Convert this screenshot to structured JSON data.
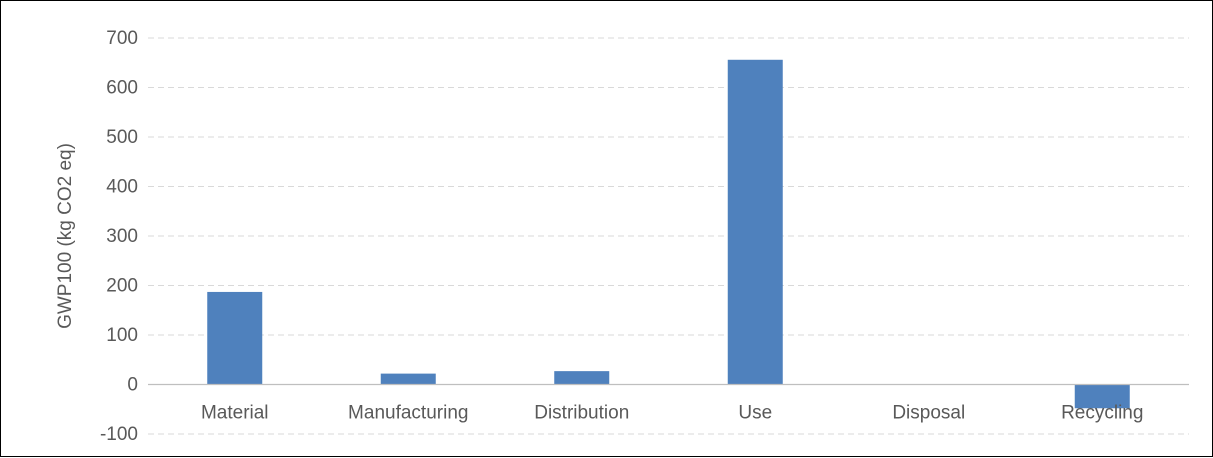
{
  "chart_data": {
    "type": "bar",
    "categories": [
      "Material",
      "Manufacturing",
      "Distribution",
      "Use",
      "Disposal",
      "Recycling"
    ],
    "values": [
      187,
      22,
      27,
      656,
      0,
      -48
    ],
    "ylabel": "GWP100 (kg CO2 eq)",
    "xlabel": "",
    "ylim": [
      -100,
      700
    ],
    "yticks": [
      -100,
      0,
      100,
      200,
      300,
      400,
      500,
      600,
      700
    ],
    "grid": "horizontal-dashed",
    "legend": "none",
    "bar_color": "#4f81bd",
    "grid_color": "#d9d9d9",
    "axis_color": "#bfbfbf"
  }
}
